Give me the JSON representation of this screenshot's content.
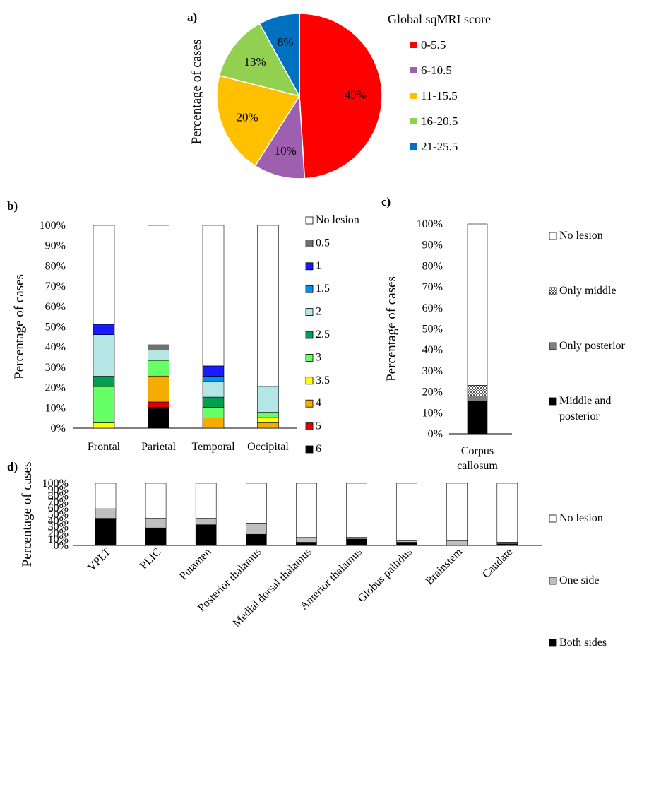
{
  "panels": {
    "a_label": "a)",
    "b_label": "b)",
    "c_label": "c)",
    "d_label": "d)"
  },
  "chart_data": [
    {
      "id": "a",
      "type": "pie",
      "title": "",
      "ylabel": "Percentage of cases",
      "legend_title": "Global sqMRI score",
      "legend_position": "right",
      "slices": [
        {
          "label": "0-5.5",
          "value": 49,
          "display": "49%",
          "color": "#ff0000"
        },
        {
          "label": "6-10.5",
          "value": 10,
          "display": "10%",
          "color": "#9e5fae"
        },
        {
          "label": "11-15.5",
          "value": 20,
          "display": "20%",
          "color": "#ffc000"
        },
        {
          "label": "16-20.5",
          "value": 13,
          "display": "13%",
          "color": "#92d050"
        },
        {
          "label": "21-25.5",
          "value": 8,
          "display": "8%",
          "color": "#0070c0"
        }
      ]
    },
    {
      "id": "b",
      "type": "bar",
      "stacked": true,
      "ylabel": "Percentage of cases",
      "ylim": [
        0,
        100
      ],
      "yticks": [
        "0%",
        "10%",
        "20%",
        "30%",
        "40%",
        "50%",
        "60%",
        "70%",
        "80%",
        "90%",
        "100%"
      ],
      "categories": [
        "Frontal",
        "Parietal",
        "Temporal",
        "Occipital"
      ],
      "legend_position": "right",
      "series": [
        {
          "name": "6",
          "color": "#000000",
          "values": [
            0,
            10.3,
            0,
            0
          ]
        },
        {
          "name": "5",
          "color": "#e00000",
          "values": [
            0,
            2.6,
            0,
            0
          ]
        },
        {
          "name": "4",
          "color": "#f5ac00",
          "values": [
            0,
            12.8,
            5.1,
            2.6
          ]
        },
        {
          "name": "3.5",
          "color": "#ffff00",
          "values": [
            2.6,
            0,
            0,
            2.6
          ]
        },
        {
          "name": "3",
          "color": "#66ff66",
          "values": [
            17.9,
            7.7,
            5.1,
            2.6
          ]
        },
        {
          "name": "2.5",
          "color": "#00a050",
          "values": [
            5.1,
            0,
            5.1,
            0
          ]
        },
        {
          "name": "2",
          "color": "#b4e6e6",
          "values": [
            20.5,
            5.1,
            7.7,
            12.8
          ]
        },
        {
          "name": "1.5",
          "color": "#0090f0",
          "values": [
            0,
            0,
            2.6,
            0
          ]
        },
        {
          "name": "1",
          "color": "#1a1aff",
          "values": [
            5.1,
            0,
            5.1,
            0
          ]
        },
        {
          "name": "0.5",
          "color": "#707070",
          "values": [
            0,
            2.6,
            0,
            0
          ]
        },
        {
          "name": "No lesion",
          "color": "#ffffff",
          "values": [
            48.8,
            58.9,
            69.3,
            79.4
          ]
        }
      ]
    },
    {
      "id": "c",
      "type": "bar",
      "stacked": true,
      "ylabel": "Percentage of cases",
      "ylim": [
        0,
        100
      ],
      "yticks": [
        "0%",
        "10%",
        "20%",
        "30%",
        "40%",
        "50%",
        "60%",
        "70%",
        "80%",
        "90%",
        "100%"
      ],
      "categories": [
        "Corpus callosum"
      ],
      "legend_position": "right",
      "series": [
        {
          "name": "Middle and posterior",
          "color": "#000000",
          "values": [
            15.4
          ]
        },
        {
          "name": "Only posterior",
          "color": "#7f7f7f",
          "values": [
            2.6
          ]
        },
        {
          "name": "Only middle",
          "color": "checker",
          "values": [
            5.1
          ]
        },
        {
          "name": "No lesion",
          "color": "#ffffff",
          "values": [
            76.9
          ]
        }
      ]
    },
    {
      "id": "d",
      "type": "bar",
      "stacked": true,
      "ylabel": "Percentage of cases",
      "ylim": [
        0,
        100
      ],
      "yticks": [
        "0%",
        "10%",
        "20%",
        "30%",
        "40%",
        "50%",
        "60%",
        "70%",
        "80%",
        "90%",
        "100%"
      ],
      "categories": [
        "VPLT",
        "PLIC",
        "Putamen",
        "Posterior thalamus",
        "Medial dorsal thalamus",
        "Anterior thalamus",
        "Globus pallidus",
        "Brainstem",
        "Caudate"
      ],
      "legend_position": "right",
      "series": [
        {
          "name": "Both sides",
          "color": "#000000",
          "values": [
            43.6,
            28.2,
            33.3,
            17.9,
            5.1,
            10.3,
            5.1,
            0,
            2.6
          ]
        },
        {
          "name": "One side",
          "color": "#bfbfbf",
          "values": [
            15.4,
            15.4,
            10.3,
            17.9,
            7.7,
            2.6,
            2.6,
            7.7,
            2.6
          ]
        },
        {
          "name": "No lesion",
          "color": "#ffffff",
          "values": [
            41.0,
            56.4,
            56.4,
            64.2,
            87.2,
            87.1,
            92.3,
            92.3,
            94.8
          ]
        }
      ]
    }
  ]
}
